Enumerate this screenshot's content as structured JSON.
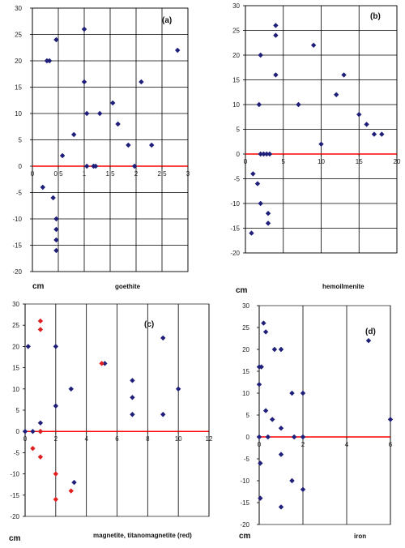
{
  "chart_data": [
    {
      "id": "a",
      "type": "scatter",
      "tag": "(a)",
      "unit_label": "cm",
      "xlabel": "goethite",
      "xlim": [
        0,
        3
      ],
      "ylim": [
        -20,
        30
      ],
      "xticks": [
        0,
        0.5,
        1,
        1.5,
        2,
        2.5,
        3
      ],
      "xtick_labels": [
        "0",
        "0.5",
        "1",
        "1.5",
        "2",
        "2.5",
        "3"
      ],
      "yticks": [
        -20,
        -15,
        -10,
        -5,
        0,
        5,
        10,
        15,
        20,
        25,
        30
      ],
      "vgrid": [
        0,
        0.5,
        1,
        1.5,
        2,
        2.5,
        3
      ],
      "hgrid": [
        -20,
        -15,
        -10,
        -5,
        0,
        5,
        10,
        15,
        20,
        25,
        30
      ],
      "zero_line_color": "#ff0000",
      "series": [
        {
          "color": "#1f1f7a",
          "points": [
            [
              0.2,
              -4
            ],
            [
              0.28,
              20
            ],
            [
              0.33,
              20
            ],
            [
              0.4,
              -6
            ],
            [
              0.46,
              24
            ],
            [
              0.46,
              -10
            ],
            [
              0.46,
              -12
            ],
            [
              0.46,
              -14
            ],
            [
              0.46,
              -16
            ],
            [
              0.58,
              2
            ],
            [
              0.8,
              6
            ],
            [
              1.0,
              26
            ],
            [
              1.0,
              16
            ],
            [
              1.05,
              10
            ],
            [
              1.05,
              0
            ],
            [
              1.18,
              0
            ],
            [
              1.22,
              0
            ],
            [
              1.3,
              10
            ],
            [
              1.55,
              12
            ],
            [
              1.65,
              8
            ],
            [
              1.85,
              4
            ],
            [
              1.97,
              0
            ],
            [
              2.1,
              16
            ],
            [
              2.3,
              4
            ],
            [
              2.8,
              22
            ]
          ]
        }
      ]
    },
    {
      "id": "b",
      "type": "scatter",
      "tag": "(b)",
      "unit_label": "cm",
      "xlabel": "hemoilmenite",
      "xlim": [
        0,
        20
      ],
      "ylim": [
        -20,
        30
      ],
      "xticks": [
        0,
        5,
        10,
        15,
        20
      ],
      "xtick_labels": [
        "0",
        "5",
        "10",
        "15",
        "20"
      ],
      "yticks": [
        -20,
        -15,
        -10,
        -5,
        0,
        5,
        10,
        15,
        20,
        25,
        30
      ],
      "vgrid": [
        0,
        5,
        10,
        15,
        20
      ],
      "hgrid": [
        -20,
        -15,
        -10,
        -5,
        0,
        5,
        10,
        15,
        20,
        25,
        30
      ],
      "zero_line_color": "#ff0000",
      "series": [
        {
          "color": "#1f1f7a",
          "points": [
            [
              0.8,
              -16
            ],
            [
              1,
              -4
            ],
            [
              1.6,
              -6
            ],
            [
              1.8,
              10
            ],
            [
              2,
              20
            ],
            [
              2,
              -10
            ],
            [
              2,
              0
            ],
            [
              2.4,
              0
            ],
            [
              2.8,
              0
            ],
            [
              3,
              -14
            ],
            [
              3,
              -12
            ],
            [
              3.2,
              0
            ],
            [
              4,
              26
            ],
            [
              4,
              24
            ],
            [
              4,
              16
            ],
            [
              7,
              10
            ],
            [
              9,
              22
            ],
            [
              10,
              2
            ],
            [
              12,
              12
            ],
            [
              13,
              16
            ],
            [
              15,
              8
            ],
            [
              16,
              6
            ],
            [
              17,
              4
            ],
            [
              18,
              4
            ]
          ]
        }
      ]
    },
    {
      "id": "c",
      "type": "scatter",
      "tag": "(c)",
      "unit_label": "cm",
      "xlabel": "magnetite, titanomagnetite (red)",
      "xlim": [
        0,
        12
      ],
      "ylim": [
        -20,
        30
      ],
      "xticks": [
        0,
        2,
        4,
        6,
        8,
        10,
        12
      ],
      "xtick_labels": [
        "0",
        "2",
        "4",
        "6",
        "8",
        "10",
        "12"
      ],
      "yticks": [
        -20,
        -15,
        -10,
        -5,
        0,
        5,
        10,
        15,
        20,
        25,
        30
      ],
      "vgrid": [
        0,
        2,
        4,
        6,
        8,
        10,
        12
      ],
      "hgrid": [],
      "zero_line_color": "#ff0000",
      "series": [
        {
          "color": "#1f1f7a",
          "points": [
            [
              0,
              0
            ],
            [
              0.2,
              20
            ],
            [
              0.5,
              0
            ],
            [
              1,
              2
            ],
            [
              1,
              0
            ],
            [
              2,
              20
            ],
            [
              2,
              6
            ],
            [
              3,
              10
            ],
            [
              3.2,
              -12
            ],
            [
              5.2,
              16
            ],
            [
              7,
              12
            ],
            [
              7,
              8
            ],
            [
              7,
              4
            ],
            [
              9,
              22
            ],
            [
              9,
              4
            ],
            [
              10,
              10
            ]
          ]
        },
        {
          "color": "#e02020",
          "points": [
            [
              0.5,
              -4
            ],
            [
              1,
              26
            ],
            [
              1,
              24
            ],
            [
              1,
              0
            ],
            [
              1,
              -6
            ],
            [
              2,
              -10
            ],
            [
              2,
              -16
            ],
            [
              3,
              -14
            ],
            [
              5,
              16
            ]
          ]
        }
      ]
    },
    {
      "id": "d",
      "type": "scatter",
      "tag": "(d)",
      "unit_label": "cm",
      "xlabel": "iron",
      "xlim": [
        0,
        6
      ],
      "ylim": [
        -20,
        30
      ],
      "xticks": [
        0,
        2,
        4,
        6
      ],
      "xtick_labels": [
        "0",
        "2",
        "4",
        "6"
      ],
      "yticks": [
        -20,
        -15,
        -10,
        -5,
        0,
        5,
        10,
        15,
        20,
        25,
        30
      ],
      "vgrid": [
        0,
        2,
        4,
        6
      ],
      "hgrid": [],
      "zero_line_color": "#ff0000",
      "series": [
        {
          "color": "#1f1f7a",
          "points": [
            [
              0,
              16
            ],
            [
              0,
              12
            ],
            [
              0,
              0
            ],
            [
              0.05,
              -6
            ],
            [
              0.05,
              -14
            ],
            [
              0.1,
              16
            ],
            [
              0.2,
              26
            ],
            [
              0.3,
              24
            ],
            [
              0.3,
              6
            ],
            [
              0.4,
              0
            ],
            [
              0.6,
              4
            ],
            [
              0.7,
              20
            ],
            [
              1,
              20
            ],
            [
              1,
              2
            ],
            [
              1,
              -4
            ],
            [
              1,
              -16
            ],
            [
              1.5,
              10
            ],
            [
              1.5,
              -10
            ],
            [
              1.6,
              0
            ],
            [
              2,
              10
            ],
            [
              2,
              0
            ],
            [
              2,
              -12
            ],
            [
              5,
              22
            ],
            [
              6,
              4
            ]
          ]
        }
      ]
    }
  ]
}
